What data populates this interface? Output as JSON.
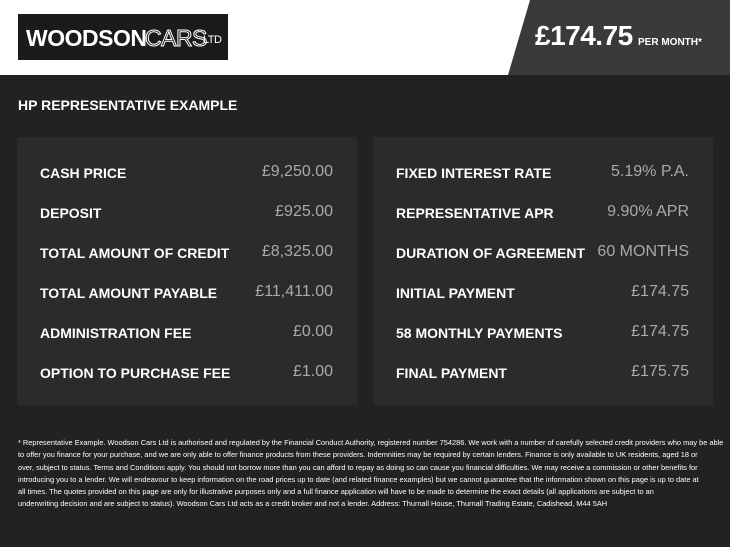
{
  "header": {
    "logo": {
      "name": "WOODSON",
      "accent": "CARS",
      "suffix": "LTD"
    },
    "price": "£174.75",
    "price_note": "PER MONTH*"
  },
  "section_title": "HP REPRESENTATIVE EXAMPLE",
  "panels": [
    {
      "rows": [
        [
          "CASH PRICE",
          "£9,250.00"
        ],
        [
          "DEPOSIT",
          "£925.00"
        ],
        [
          "TOTAL AMOUNT OF CREDIT",
          "£8,325.00"
        ],
        [
          "TOTAL AMOUNT PAYABLE",
          "£11,411.00"
        ],
        [
          "ADMINISTRATION FEE",
          "£0.00"
        ],
        [
          "OPTION TO PURCHASE FEE",
          "£1.00"
        ]
      ]
    },
    {
      "rows": [
        [
          "FIXED INTEREST RATE",
          "5.19% P.A."
        ],
        [
          "REPRESENTATIVE APR",
          "9.90% APR"
        ],
        [
          "DURATION OF AGREEMENT",
          "60 MONTHS"
        ],
        [
          "INITIAL PAYMENT",
          "£174.75"
        ],
        [
          "58 MONTHLY PAYMENTS",
          "£174.75"
        ],
        [
          "FINAL PAYMENT",
          "£175.75"
        ]
      ]
    }
  ],
  "footnote": {
    "lines": [
      "* Representative Example. Woodson Cars Ltd is authorised and regulated by the Financial Conduct Authority, registered number 754286. We work with a number of carefully selected credit providers who may be able",
      "to offer you finance for your purchase, and we are only able to offer finance products from these providers. Indemnities may be required by certain lenders. Finance is only available to UK residents, aged 18 or",
      "over, subject to status. Terms and Conditions apply. You should not borrow more than you can afford to repay as doing so can cause you financial difficulties. We may receive a commission or other benefits for",
      "introducing you to a lender. We will endeavour to keep information on the road prices up to date (and related finance examples) but we cannot guarantee that the information shown on this page is up to date at",
      "all times. The quotes provided on this page are only for illustrative purposes only and a full finance application will have to be made to determine the exact details (all applications are subject to an",
      "underwriting decision and are subject to status). Woodson Cars Ltd acts as a credit broker and not a lender. Address: Thurnall House, Thurnall Trading Estate, Cadishead, M44 5AH"
    ]
  }
}
